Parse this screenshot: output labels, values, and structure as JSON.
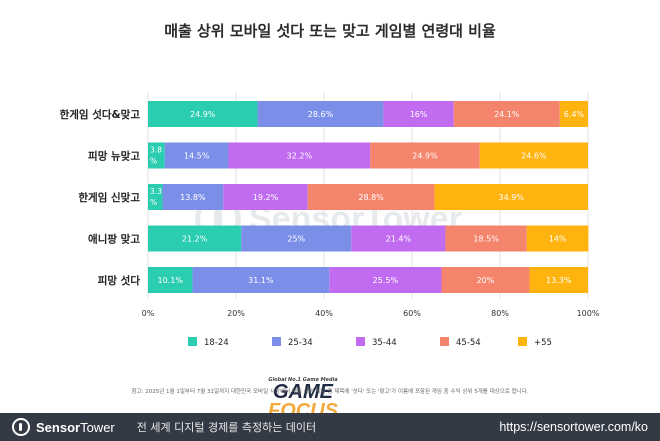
{
  "title": "매출 상위 모바일 섯다 또는 맞고 게임별 연령대 비율",
  "watermark": {
    "brand": "SensorTower"
  },
  "footnote": "참고: 2025년 1월 1일부터 7월 31일까지 대한민국 모바일 시장에서 매출 상위 게임 중 제목에 '섯다' 또는 '맞고'가 이름에 포함된 게임 중 수익 상위 5개를 대상으로 합니다.",
  "gamefocus": {
    "tagline": "Global No.1 Game Media",
    "word1": "GAME",
    "word2": "FOCUS"
  },
  "footer": {
    "brand_bold": "Sensor",
    "brand_rest": "Tower",
    "tagline": "전 세계 디지털 경제를 측정하는 데이터",
    "url": "https://sensortower.com/ko"
  },
  "chart_data": {
    "type": "bar",
    "orientation": "horizontal",
    "stacked": true,
    "categories": [
      "한게임 섯다&맞고",
      "피망 뉴맞고",
      "한게임 신맞고",
      "애니팡 맞고",
      "피망 섯다"
    ],
    "series": [
      {
        "name": "18-24",
        "color": "#2bcdb0",
        "values": [
          24.9,
          3.8,
          3.3,
          21.2,
          10.1
        ],
        "labels": [
          "24.9%",
          "3.8%",
          "3.3%",
          "21.2%",
          "10.1%"
        ]
      },
      {
        "name": "25-34",
        "color": "#7b8fe8",
        "values": [
          28.6,
          14.5,
          13.8,
          25.0,
          31.1
        ],
        "labels": [
          "28.6%",
          "14.5%",
          "13.8%",
          "25%",
          "31.1%"
        ]
      },
      {
        "name": "35-44",
        "color": "#c16cf0",
        "values": [
          16.0,
          32.2,
          19.2,
          21.4,
          25.5
        ],
        "labels": [
          "16%",
          "32.2%",
          "19.2%",
          "21.4%",
          "25.5%"
        ]
      },
      {
        "name": "45-54",
        "color": "#f4846b",
        "values": [
          24.1,
          24.9,
          28.8,
          18.5,
          20.0
        ],
        "labels": [
          "24.1%",
          "24.9%",
          "28.8%",
          "18.5%",
          "20%"
        ]
      },
      {
        "name": "+55",
        "color": "#ffb30f",
        "values": [
          6.4,
          24.6,
          34.9,
          14.0,
          13.3
        ],
        "labels": [
          "6.4%",
          "24.6%",
          "34.9%",
          "14%",
          "13.3%"
        ]
      }
    ],
    "xlim": [
      0,
      100
    ],
    "x_ticks": [
      "0%",
      "20%",
      "40%",
      "60%",
      "80%",
      "100%"
    ],
    "grid": true,
    "legend_position": "bottom"
  }
}
